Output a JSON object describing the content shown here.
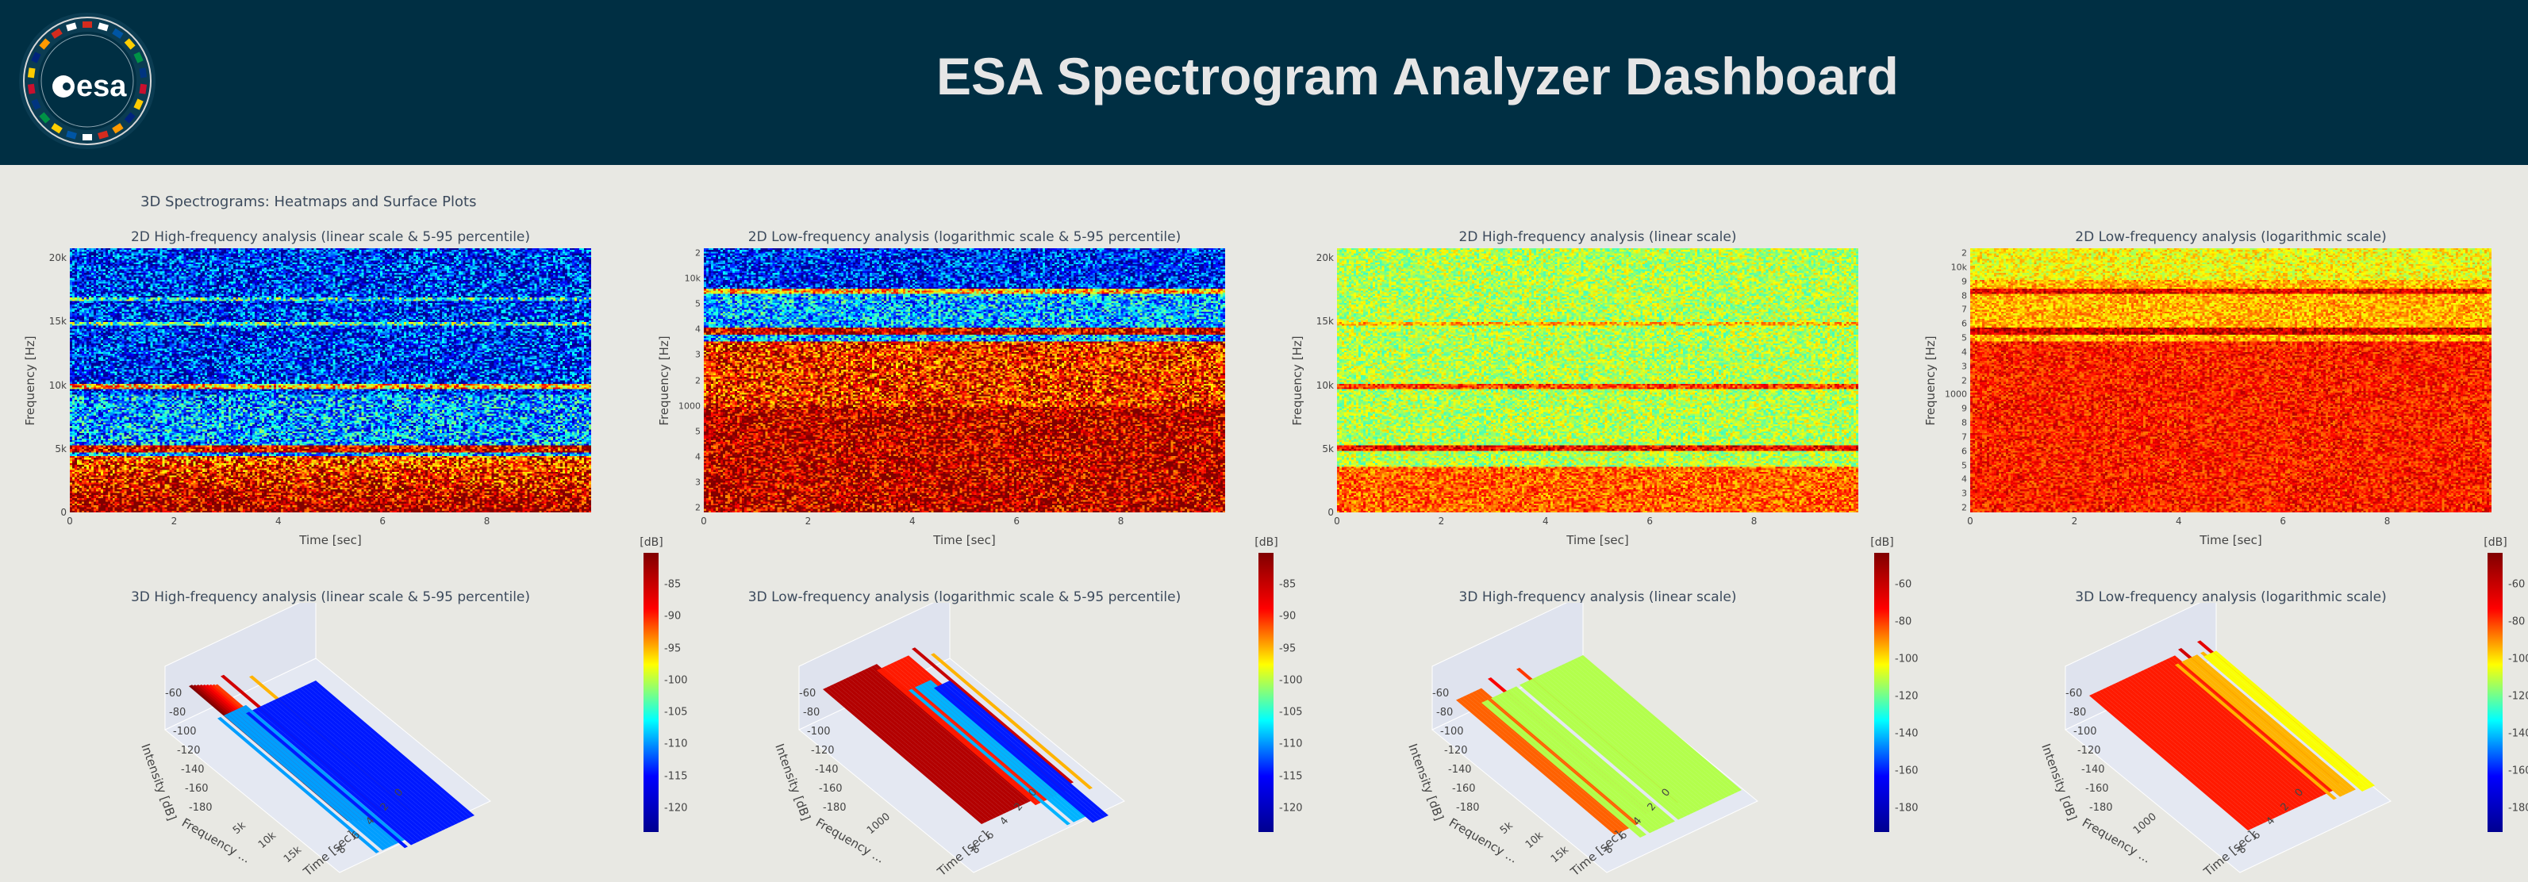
{
  "header": {
    "title": "ESA Spectrogram Analyzer Dashboard",
    "logo_text": "esa",
    "bg_color": "#002f43"
  },
  "section_title": "3D Spectrograms: Heatmaps and Surface Plots",
  "x_axis": {
    "title": "Time [sec]",
    "ticks": [
      "0",
      "2",
      "4",
      "6",
      "8"
    ]
  },
  "y_axis_title": "Frequency [Hz]",
  "colorbar_title": "[dB]",
  "surface_axes": {
    "z_title": "Intensity [dB]",
    "y_title": "Frequency ...",
    "x_title": "Time [sec]"
  },
  "panels": [
    {
      "title_2d": "2D High-frequency analysis (linear scale & 5-95 percentile)",
      "title_3d": "3D High-frequency analysis (linear scale & 5-95 percentile)",
      "scale": "linear",
      "yticks": [
        "20k",
        "15k",
        "10k",
        "5k",
        "0"
      ],
      "colorbar_ticks": [
        "-85",
        "-90",
        "-95",
        "-100",
        "-105",
        "-110",
        "-115",
        "-120"
      ],
      "z_ticks": [
        "-60",
        "-80",
        "-100",
        "-120",
        "-140",
        "-160",
        "-180"
      ],
      "freq_ticks": [
        "5k",
        "10k",
        "15k"
      ],
      "time_ticks": [
        "0",
        "2",
        "4",
        "6",
        "8"
      ]
    },
    {
      "title_2d": "2D Low-frequency analysis (logarithmic scale & 5-95 percentile)",
      "title_3d": "3D Low-frequency analysis (logarithmic scale & 5-95 percentile)",
      "scale": "log",
      "yticks": [
        "2",
        "10k",
        "5",
        "4",
        "3",
        "2",
        "1000",
        "5",
        "4",
        "3",
        "2"
      ],
      "colorbar_ticks": [
        "-85",
        "-90",
        "-95",
        "-100",
        "-105",
        "-110",
        "-115",
        "-120"
      ],
      "z_ticks": [
        "-60",
        "-80",
        "-100",
        "-120",
        "-140",
        "-160",
        "-180"
      ],
      "freq_ticks": [
        "1000"
      ],
      "time_ticks": [
        "0",
        "2",
        "4",
        "6",
        "8"
      ]
    },
    {
      "title_2d": "2D High-frequency analysis (linear scale)",
      "title_3d": "3D High-frequency analysis (linear scale)",
      "scale": "linear",
      "yticks": [
        "20k",
        "15k",
        "10k",
        "5k",
        "0"
      ],
      "colorbar_ticks": [
        "-60",
        "-80",
        "-100",
        "-120",
        "-140",
        "-160",
        "-180"
      ],
      "z_ticks": [
        "-60",
        "-80",
        "-100",
        "-120",
        "-140",
        "-160",
        "-180"
      ],
      "freq_ticks": [
        "5k",
        "10k",
        "15k"
      ],
      "time_ticks": [
        "0",
        "2",
        "4",
        "6",
        "8"
      ]
    },
    {
      "title_2d": "2D Low-frequency analysis (logarithmic scale)",
      "title_3d": "3D Low-frequency analysis (logarithmic scale)",
      "scale": "log",
      "yticks": [
        "2",
        "10k",
        "9",
        "8",
        "7",
        "6",
        "5",
        "4",
        "3",
        "2",
        "1000",
        "9",
        "8",
        "7",
        "6",
        "5",
        "4",
        "3",
        "2"
      ],
      "colorbar_ticks": [
        "-60",
        "-80",
        "-100",
        "-120",
        "-140",
        "-160",
        "-180"
      ],
      "z_ticks": [
        "-60",
        "-80",
        "-100",
        "-120",
        "-140",
        "-160",
        "-180"
      ],
      "freq_ticks": [
        "1000"
      ],
      "time_ticks": [
        "0",
        "2",
        "4",
        "6",
        "8"
      ]
    }
  ],
  "colors": {
    "jet": [
      "#00008f",
      "#0000ff",
      "#00ffff",
      "#ffff00",
      "#ff0000",
      "#800000"
    ]
  }
}
